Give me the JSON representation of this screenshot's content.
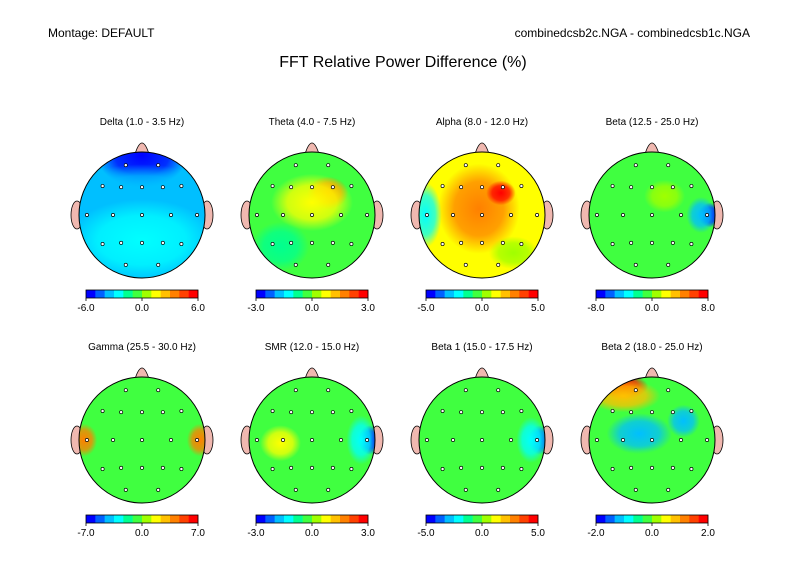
{
  "header": {
    "montage": "Montage:  DEFAULT",
    "files": "combinedcsb2c.NGA - combinedcsb1c.NGA"
  },
  "title": "FFT Relative Power Difference  (%)",
  "palette": [
    "#0000ff",
    "#0060ff",
    "#00bfff",
    "#00ffff",
    "#00ff90",
    "#40ff40",
    "#a0ff00",
    "#ffff00",
    "#ffc000",
    "#ff8000",
    "#ff4000",
    "#ff0000"
  ],
  "maps": [
    {
      "id": "delta",
      "label": "Delta (1.0 - 3.5 Hz)",
      "ticks": [
        "-6.0",
        "0.0",
        "6.0"
      ],
      "base": 2,
      "blobs": [
        [
          0,
          -0.95,
          0,
          0.55,
          0.4
        ],
        [
          0,
          -0.35,
          2,
          0.9,
          0.35
        ],
        [
          0,
          0.4,
          3,
          0.9,
          0.5
        ]
      ]
    },
    {
      "id": "theta",
      "label": "Theta (4.0 - 7.5 Hz)",
      "ticks": [
        "-3.0",
        "0.0",
        "3.0"
      ],
      "base": 5,
      "blobs": [
        [
          0.25,
          -0.35,
          9,
          0.25,
          0.2
        ],
        [
          0,
          -0.2,
          7,
          0.5,
          0.35
        ],
        [
          -0.5,
          0.5,
          4,
          0.35,
          0.3
        ]
      ]
    },
    {
      "id": "alpha",
      "label": "Alpha (8.0 - 12.0 Hz)",
      "ticks": [
        "-5.0",
        "0.0",
        "5.0"
      ],
      "base": 7,
      "blobs": [
        [
          -0.05,
          -0.1,
          9,
          0.5,
          0.55
        ],
        [
          0.3,
          -0.35,
          11,
          0.18,
          0.15
        ],
        [
          -0.9,
          0,
          3,
          0.2,
          0.4
        ],
        [
          0.5,
          0.6,
          6,
          0.3,
          0.2
        ]
      ]
    },
    {
      "id": "beta",
      "label": "Beta (12.5 - 25.0 Hz)",
      "ticks": [
        "-8.0",
        "0.0",
        "8.0"
      ],
      "base": 5,
      "blobs": [
        [
          0.92,
          0,
          0,
          0.14,
          0.15
        ],
        [
          0.78,
          0,
          2,
          0.18,
          0.22
        ],
        [
          0.2,
          -0.3,
          6,
          0.25,
          0.2
        ]
      ]
    },
    {
      "id": "gamma",
      "label": "Gamma (25.5 - 30.0 Hz)",
      "ticks": [
        "-7.0",
        "0.0",
        "7.0"
      ],
      "base": 5,
      "blobs": [
        [
          -0.92,
          0,
          9,
          0.16,
          0.2
        ],
        [
          0.92,
          0,
          9,
          0.16,
          0.2
        ],
        [
          0,
          0,
          5,
          0.5,
          0.5
        ]
      ]
    },
    {
      "id": "smr",
      "label": "SMR (12.0 - 15.0 Hz)",
      "ticks": [
        "-3.0",
        "0.0",
        "3.0"
      ],
      "base": 5,
      "blobs": [
        [
          -0.5,
          0.05,
          7,
          0.25,
          0.22
        ],
        [
          0.92,
          0,
          0,
          0.14,
          0.18
        ],
        [
          0.78,
          0,
          3,
          0.18,
          0.3
        ]
      ]
    },
    {
      "id": "beta1",
      "label": "Beta 1 (15.0 - 17.5 Hz)",
      "ticks": [
        "-5.0",
        "0.0",
        "5.0"
      ],
      "base": 5,
      "blobs": [
        [
          0.92,
          0,
          1,
          0.14,
          0.18
        ],
        [
          0.78,
          0,
          3,
          0.18,
          0.28
        ]
      ]
    },
    {
      "id": "beta2",
      "label": "Beta 2 (18.0 - 25.0 Hz)",
      "ticks": [
        "-2.0",
        "0.0",
        "2.0"
      ],
      "base": 5,
      "blobs": [
        [
          -0.45,
          -0.85,
          11,
          0.3,
          0.15
        ],
        [
          -0.45,
          -0.7,
          8,
          0.45,
          0.2
        ],
        [
          -0.2,
          -0.1,
          2,
          0.4,
          0.25
        ],
        [
          0.5,
          -0.3,
          2,
          0.2,
          0.2
        ],
        [
          0,
          0.5,
          5,
          0.6,
          0.3
        ]
      ]
    }
  ]
}
